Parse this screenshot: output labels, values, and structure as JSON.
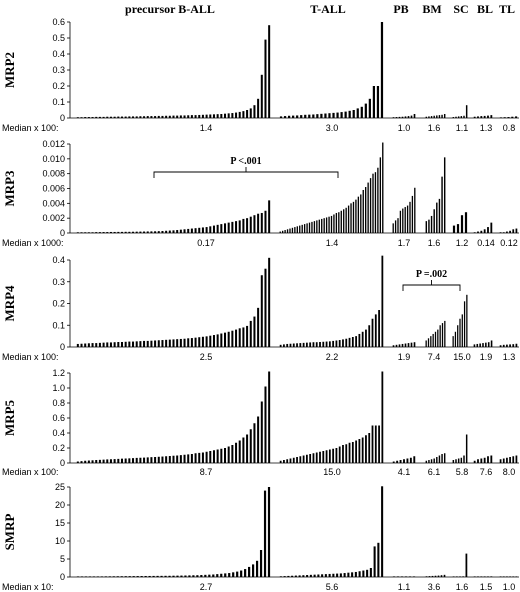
{
  "groups": [
    "precursor B-ALL",
    "T-ALL",
    "PB",
    "BM",
    "SC",
    "BL",
    "TL"
  ],
  "chart_data": [
    {
      "type": "bar",
      "ylabel": "MRP2",
      "ylim": [
        0,
        0.6
      ],
      "yticks": [
        "0",
        "0.1",
        "0.2",
        "0.3",
        "0.4",
        "0.5",
        "0.6"
      ],
      "median_label": "Median x 100:",
      "medians": [
        "1.4",
        "3.0",
        "1.0",
        "1.6",
        "1.1",
        "1.3",
        "0.8"
      ],
      "series": [
        {
          "values": [
            0.005,
            0.005,
            0.006,
            0.006,
            0.006,
            0.007,
            0.007,
            0.007,
            0.008,
            0.008,
            0.008,
            0.009,
            0.009,
            0.009,
            0.01,
            0.01,
            0.01,
            0.011,
            0.011,
            0.012,
            0.012,
            0.012,
            0.013,
            0.013,
            0.014,
            0.014,
            0.015,
            0.015,
            0.016,
            0.016,
            0.017,
            0.018,
            0.018,
            0.019,
            0.02,
            0.021,
            0.022,
            0.023,
            0.024,
            0.025,
            0.027,
            0.029,
            0.031,
            0.034,
            0.038,
            0.043,
            0.05,
            0.06,
            0.08,
            0.12,
            0.27,
            0.49,
            0.58
          ]
        },
        {
          "values": [
            0.01,
            0.012,
            0.014,
            0.015,
            0.016,
            0.018,
            0.02,
            0.021,
            0.022,
            0.024,
            0.026,
            0.028,
            0.03,
            0.032,
            0.034,
            0.037,
            0.04,
            0.045,
            0.05,
            0.06,
            0.07,
            0.09,
            0.12,
            0.2,
            0.2,
            0.6
          ]
        },
        {
          "values": [
            0.005,
            0.006,
            0.007,
            0.008,
            0.01,
            0.012,
            0.015,
            0.025
          ]
        },
        {
          "values": [
            0.008,
            0.01,
            0.012,
            0.014,
            0.016,
            0.018,
            0.02,
            0.025
          ]
        },
        {
          "values": [
            0.006,
            0.008,
            0.01,
            0.012,
            0.014,
            0.08
          ]
        },
        {
          "values": [
            0.008,
            0.01,
            0.012,
            0.013,
            0.015,
            0.018
          ]
        },
        {
          "values": [
            0.004,
            0.005,
            0.006,
            0.008,
            0.01
          ]
        }
      ]
    },
    {
      "type": "bar",
      "ylabel": "MRP3",
      "ylim": [
        0,
        0.012
      ],
      "yticks": [
        "0",
        "0.002",
        "0.004",
        "0.006",
        "0.008",
        "0.010",
        "0.012"
      ],
      "median_label": "Median x 1000:",
      "medians": [
        "0.17",
        "1.4",
        "1.7",
        "1.6",
        "1.2",
        "0.14",
        "0.12"
      ],
      "annotation": {
        "text": "P <.001",
        "from_group": 0,
        "to_group": 1
      },
      "series": [
        {
          "values": [
            0.0001,
            0.0001,
            0.0001,
            0.0001,
            0.0001,
            0.00012,
            0.00012,
            0.00013,
            0.00013,
            0.00014,
            0.00014,
            0.00015,
            0.00015,
            0.00016,
            0.00016,
            0.00017,
            0.00018,
            0.00019,
            0.0002,
            0.00021,
            0.00022,
            0.00023,
            0.00025,
            0.00027,
            0.0003,
            0.00033,
            0.00036,
            0.0004,
            0.00045,
            0.0005,
            0.00055,
            0.0006,
            0.00065,
            0.0007,
            0.00075,
            0.0008,
            0.0009,
            0.001,
            0.0011,
            0.0012,
            0.0013,
            0.0014,
            0.0015,
            0.0016,
            0.0017,
            0.0019,
            0.002,
            0.0022,
            0.0024,
            0.0026,
            0.0027,
            0.003,
            0.0044
          ]
        },
        {
          "values": [
            0.0002,
            0.0003,
            0.0004,
            0.0005,
            0.0006,
            0.0007,
            0.0008,
            0.0009,
            0.001,
            0.0011,
            0.0012,
            0.0013,
            0.0014,
            0.0015,
            0.0016,
            0.0017,
            0.0018,
            0.0019,
            0.002,
            0.0021,
            0.0022,
            0.0023,
            0.0025,
            0.0027,
            0.0028,
            0.003,
            0.0032,
            0.0034,
            0.0037,
            0.004,
            0.0042,
            0.0045,
            0.0049,
            0.0052,
            0.0058,
            0.0062,
            0.0068,
            0.0074,
            0.008,
            0.0082,
            0.0088,
            0.0102,
            0.0122
          ]
        },
        {
          "values": [
            0.0013,
            0.0017,
            0.002,
            0.003,
            0.0033,
            0.0035,
            0.0037,
            0.0042,
            0.005,
            0.0061
          ]
        },
        {
          "values": [
            0.0016,
            0.0018,
            0.0023,
            0.0032,
            0.0041,
            0.0046,
            0.0076,
            0.0102
          ]
        },
        {
          "values": [
            0.001,
            0.0012,
            0.0024,
            0.0028
          ]
        },
        {
          "values": [
            0.0001,
            0.0002,
            0.0003,
            0.0005,
            0.0008,
            0.0014
          ]
        },
        {
          "values": [
            0.0001,
            0.0001,
            0.0002,
            0.0003,
            0.0005,
            0.0006
          ]
        }
      ]
    },
    {
      "type": "bar",
      "ylabel": "MRP4",
      "ylim": [
        0,
        0.4
      ],
      "yticks": [
        "0",
        "0.1",
        "0.2",
        "0.3",
        "0.4"
      ],
      "median_label": "Median x 100:",
      "medians": [
        "2.5",
        "2.2",
        "1.9",
        "7.4",
        "15.0",
        "1.9",
        "1.3"
      ],
      "annotation": {
        "text": "P =.002",
        "from_group": 2,
        "to_group": 4
      },
      "series": [
        {
          "values": [
            0.014,
            0.015,
            0.016,
            0.017,
            0.018,
            0.018,
            0.019,
            0.02,
            0.021,
            0.021,
            0.022,
            0.023,
            0.023,
            0.024,
            0.025,
            0.025,
            0.026,
            0.027,
            0.028,
            0.028,
            0.029,
            0.03,
            0.031,
            0.032,
            0.033,
            0.034,
            0.035,
            0.036,
            0.037,
            0.038,
            0.04,
            0.041,
            0.043,
            0.045,
            0.047,
            0.049,
            0.052,
            0.055,
            0.058,
            0.062,
            0.066,
            0.07,
            0.075,
            0.08,
            0.086,
            0.09,
            0.097,
            0.12,
            0.14,
            0.18,
            0.33,
            0.36,
            0.41
          ]
        },
        {
          "values": [
            0.01,
            0.012,
            0.014,
            0.015,
            0.016,
            0.017,
            0.018,
            0.019,
            0.02,
            0.021,
            0.022,
            0.022,
            0.023,
            0.024,
            0.025,
            0.026,
            0.028,
            0.03,
            0.032,
            0.035,
            0.038,
            0.042,
            0.046,
            0.05,
            0.06,
            0.07,
            0.08,
            0.1,
            0.13,
            0.15,
            0.17,
            0.42
          ]
        },
        {
          "values": [
            0.008,
            0.01,
            0.012,
            0.014,
            0.016,
            0.018,
            0.02,
            0.022
          ]
        },
        {
          "values": [
            0.03,
            0.04,
            0.05,
            0.06,
            0.07,
            0.08,
            0.1,
            0.11,
            0.12
          ]
        },
        {
          "values": [
            0.05,
            0.07,
            0.1,
            0.13,
            0.15,
            0.21,
            0.24
          ]
        },
        {
          "values": [
            0.012,
            0.014,
            0.016,
            0.018,
            0.02,
            0.022,
            0.03
          ]
        },
        {
          "values": [
            0.008,
            0.01,
            0.011,
            0.012,
            0.013,
            0.015
          ]
        }
      ]
    },
    {
      "type": "bar",
      "ylabel": "MRP5",
      "ylim": [
        0,
        1.2
      ],
      "yticks": [
        "0",
        "0.2",
        "0.4",
        "0.6",
        "0.8",
        "1.0",
        "1.2"
      ],
      "median_label": "Median x 100:",
      "medians": [
        "8.7",
        "15.0",
        "4.1",
        "6.1",
        "5.8",
        "7.6",
        "8.0"
      ],
      "series": [
        {
          "values": [
            0.02,
            0.025,
            0.03,
            0.033,
            0.036,
            0.04,
            0.042,
            0.045,
            0.048,
            0.05,
            0.052,
            0.055,
            0.058,
            0.06,
            0.062,
            0.065,
            0.068,
            0.07,
            0.072,
            0.075,
            0.078,
            0.08,
            0.083,
            0.086,
            0.09,
            0.093,
            0.097,
            0.1,
            0.105,
            0.11,
            0.115,
            0.12,
            0.13,
            0.135,
            0.14,
            0.15,
            0.16,
            0.17,
            0.18,
            0.19,
            0.2,
            0.22,
            0.24,
            0.27,
            0.3,
            0.34,
            0.38,
            0.45,
            0.53,
            0.62,
            0.82,
            1.02,
            1.22
          ]
        },
        {
          "values": [
            0.03,
            0.04,
            0.05,
            0.06,
            0.07,
            0.08,
            0.09,
            0.1,
            0.11,
            0.12,
            0.13,
            0.14,
            0.15,
            0.16,
            0.17,
            0.18,
            0.19,
            0.2,
            0.22,
            0.24,
            0.25,
            0.27,
            0.28,
            0.3,
            0.32,
            0.34,
            0.37,
            0.4,
            0.5,
            0.5,
            0.5,
            1.22
          ]
        },
        {
          "values": [
            0.02,
            0.03,
            0.04,
            0.05,
            0.06,
            0.07,
            0.09
          ]
        },
        {
          "values": [
            0.03,
            0.04,
            0.05,
            0.06,
            0.08,
            0.1,
            0.12,
            0.13
          ]
        },
        {
          "values": [
            0.04,
            0.05,
            0.06,
            0.07,
            0.1,
            0.38
          ]
        },
        {
          "values": [
            0.03,
            0.05,
            0.06,
            0.07,
            0.09,
            0.1
          ]
        },
        {
          "values": [
            0.05,
            0.06,
            0.07,
            0.08,
            0.09,
            0.1
          ]
        }
      ]
    },
    {
      "type": "bar",
      "ylabel": "SMRP",
      "ylim": [
        0,
        25
      ],
      "yticks": [
        "0",
        "5",
        "10",
        "15",
        "20",
        "25"
      ],
      "median_label": "Median x 10:",
      "medians": [
        "2.7",
        "5.6",
        "1.1",
        "3.6",
        "1.6",
        "1.5",
        "1.0"
      ],
      "series": [
        {
          "values": [
            0.1,
            0.12,
            0.13,
            0.14,
            0.15,
            0.16,
            0.17,
            0.18,
            0.19,
            0.2,
            0.21,
            0.22,
            0.23,
            0.24,
            0.25,
            0.26,
            0.27,
            0.28,
            0.29,
            0.3,
            0.31,
            0.32,
            0.33,
            0.34,
            0.36,
            0.38,
            0.4,
            0.42,
            0.45,
            0.48,
            0.5,
            0.55,
            0.6,
            0.65,
            0.7,
            0.8,
            0.9,
            1.0,
            1.1,
            1.3,
            1.5,
            1.8,
            2.2,
            2.8,
            3.5,
            4.5,
            7.5,
            24,
            25
          ]
        },
        {
          "values": [
            0.2,
            0.25,
            0.3,
            0.35,
            0.4,
            0.45,
            0.5,
            0.55,
            0.6,
            0.65,
            0.7,
            0.75,
            0.8,
            0.85,
            0.9,
            0.95,
            1.0,
            1.1,
            1.2,
            1.3,
            1.4,
            1.6,
            1.8,
            2.0,
            2.5,
            8.5,
            9.5,
            25.2
          ]
        },
        {
          "values": [
            0.05,
            0.07,
            0.09,
            0.1,
            0.12,
            0.15
          ]
        },
        {
          "values": [
            0.2,
            0.25,
            0.3,
            0.35,
            0.4,
            0.5,
            0.6
          ]
        },
        {
          "values": [
            0.1,
            0.12,
            0.15,
            0.18,
            6.5
          ]
        },
        {
          "values": [
            0.08,
            0.1,
            0.12,
            0.14,
            0.16,
            0.18
          ]
        },
        {
          "values": [
            0.06,
            0.08,
            0.1,
            0.12,
            0.14,
            0.15
          ]
        }
      ]
    }
  ]
}
